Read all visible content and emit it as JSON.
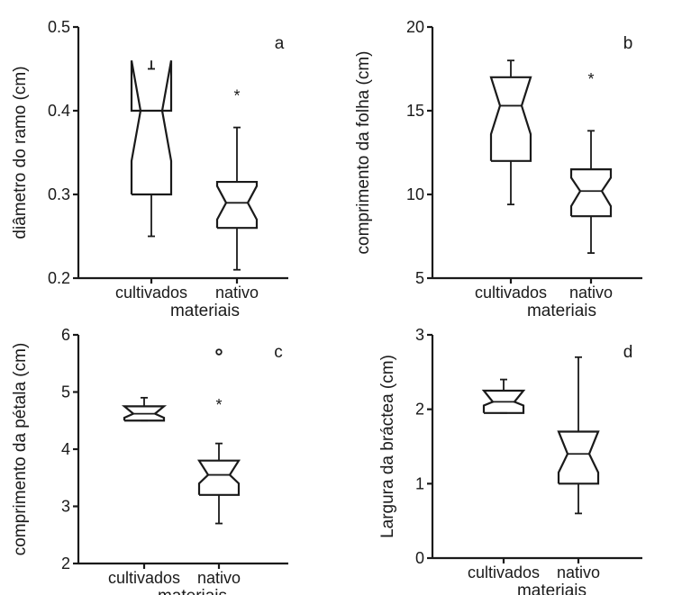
{
  "chart_data": [
    {
      "type": "boxplot",
      "panel_label": "a",
      "ylabel": "diâmetro do ramo (cm)",
      "xlabel": "materiais",
      "categories": [
        "cultivados",
        "nativo"
      ],
      "ylim": [
        0.2,
        0.5
      ],
      "yticks": [
        0.2,
        0.3,
        0.4,
        0.5
      ],
      "ytick_labels": [
        "0.2",
        "0.3",
        "0.4",
        "0.5"
      ],
      "boxes": [
        {
          "category": "cultivados",
          "whisker_low": 0.25,
          "q1": 0.3,
          "notch_low": 0.34,
          "median": 0.4,
          "notch_high": 0.46,
          "q3": 0.4,
          "whisker_high": 0.45,
          "outliers": []
        },
        {
          "category": "nativo",
          "whisker_low": 0.21,
          "q1": 0.26,
          "notch_low": 0.27,
          "median": 0.29,
          "notch_high": 0.31,
          "q3": 0.315,
          "whisker_high": 0.38,
          "outliers": [
            {
              "value": 0.42,
              "symbol": "*"
            }
          ]
        }
      ]
    },
    {
      "type": "boxplot",
      "panel_label": "b",
      "ylabel": "comprimento da folha (cm)",
      "xlabel": "materiais",
      "categories": [
        "cultivados",
        "nativo"
      ],
      "ylim": [
        5,
        20
      ],
      "yticks": [
        5,
        10,
        15,
        20
      ],
      "ytick_labels": [
        "5",
        "10",
        "15",
        "20"
      ],
      "boxes": [
        {
          "category": "cultivados",
          "whisker_low": 9.4,
          "q1": 12.0,
          "notch_low": 13.6,
          "median": 15.3,
          "notch_high": 17.0,
          "q3": 17.0,
          "whisker_high": 18.0,
          "outliers": []
        },
        {
          "category": "nativo",
          "whisker_low": 6.5,
          "q1": 8.7,
          "notch_low": 9.3,
          "median": 10.2,
          "notch_high": 11.0,
          "q3": 11.5,
          "whisker_high": 13.8,
          "outliers": [
            {
              "value": 17.0,
              "symbol": "*"
            }
          ]
        }
      ]
    },
    {
      "type": "boxplot",
      "panel_label": "c",
      "ylabel": "comprimento da pétala (cm)",
      "xlabel": "materiais",
      "categories": [
        "cultivados",
        "nativo"
      ],
      "ylim": [
        2,
        6
      ],
      "yticks": [
        2,
        3,
        4,
        5,
        6
      ],
      "ytick_labels": [
        "2",
        "3",
        "4",
        "5",
        "6"
      ],
      "boxes": [
        {
          "category": "cultivados",
          "whisker_low": 4.5,
          "q1": 4.5,
          "notch_low": 4.55,
          "median": 4.62,
          "notch_high": 4.75,
          "q3": 4.75,
          "whisker_high": 4.9,
          "outliers": []
        },
        {
          "category": "nativo",
          "whisker_low": 2.7,
          "q1": 3.2,
          "notch_low": 3.4,
          "median": 3.55,
          "notch_high": 3.8,
          "q3": 3.8,
          "whisker_high": 4.1,
          "outliers": [
            {
              "value": 4.8,
              "symbol": "*"
            },
            {
              "value": 5.7,
              "symbol": "o"
            }
          ]
        }
      ]
    },
    {
      "type": "boxplot",
      "panel_label": "d",
      "ylabel": "Largura da bráctea (cm)",
      "xlabel": "materiais",
      "categories": [
        "cultivados",
        "nativo"
      ],
      "ylim": [
        0,
        3
      ],
      "yticks": [
        0,
        1,
        2,
        3
      ],
      "ytick_labels": [
        "0",
        "1",
        "2",
        "3"
      ],
      "boxes": [
        {
          "category": "cultivados",
          "whisker_low": 1.95,
          "q1": 1.95,
          "notch_low": 2.05,
          "median": 2.1,
          "notch_high": 2.25,
          "q3": 2.25,
          "whisker_high": 2.4,
          "outliers": []
        },
        {
          "category": "nativo",
          "whisker_low": 0.6,
          "q1": 1.0,
          "notch_low": 1.15,
          "median": 1.4,
          "notch_high": 1.7,
          "q3": 1.7,
          "whisker_high": 2.7,
          "outliers": []
        }
      ]
    }
  ]
}
